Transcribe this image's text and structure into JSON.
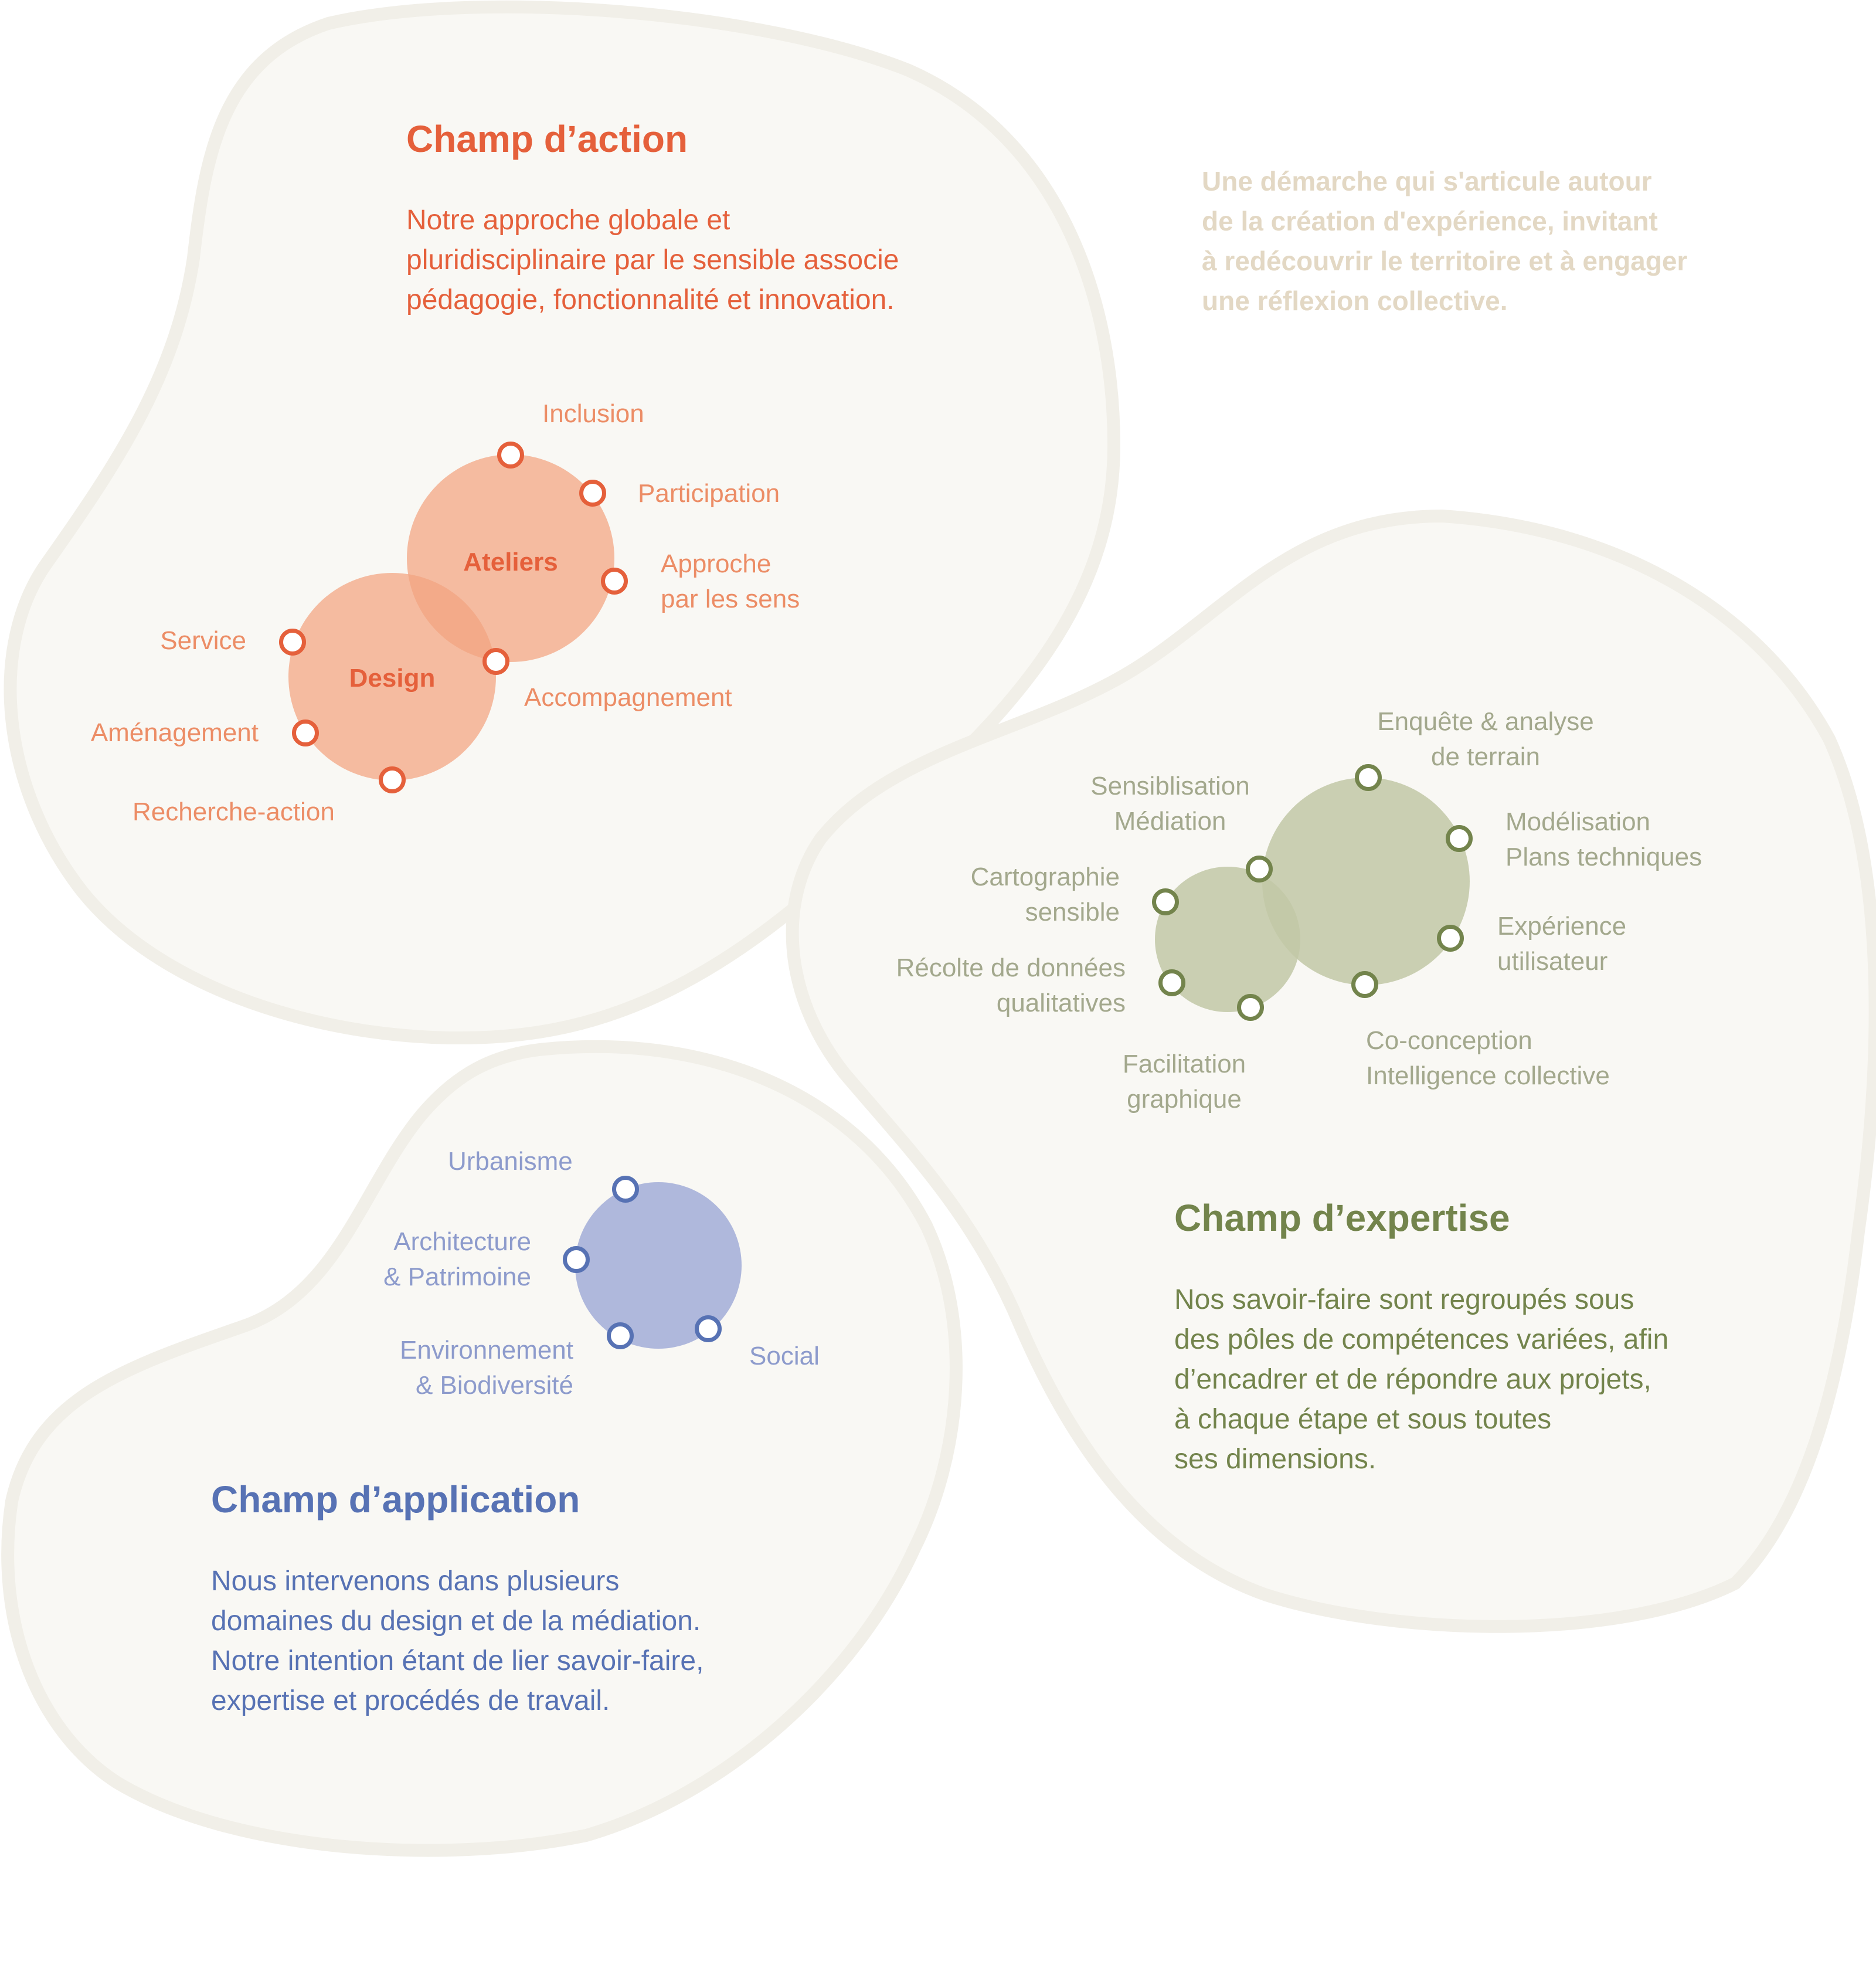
{
  "colors": {
    "blob_fill": "#f9f8f4",
    "blob_edge": "#f1efe8",
    "action_accent": "#e5603b",
    "action_circle": "#f2a47f",
    "expertise_accent": "#73844c",
    "expertise_circle": "#c2c8a6",
    "application_accent": "#5772b4",
    "application_circle": "#a6b0d9",
    "intro_text": "#e3d8c4"
  },
  "intro": "Une démarche qui s'articule autour\nde la création d'expérience, invitant\nà redécouvrir le territoire et à engager\nune réflexion collective.",
  "action": {
    "title": "Champ d’action",
    "text": "Notre approche globale et\npluridisciplinaire par le sensible associe\npédagogie, fonctionnalité et innovation.",
    "circles": [
      "Ateliers",
      "Design"
    ],
    "labels": {
      "inclusion": "Inclusion",
      "participation": "Participation",
      "approche": "Approche\npar les sens",
      "accompagnement": "Accompagnement",
      "service": "Service",
      "amenagement": "Aménagement",
      "recherche": "Recherche-action"
    }
  },
  "expertise": {
    "title": "Champ d’expertise",
    "text": "Nos savoir-faire sont regroupés sous\ndes pôles de compétences variées, afin\nd’encadrer et de répondre aux projets,\nà chaque étape et sous toutes\nses dimensions.",
    "labels": {
      "enquete": "Enquête & analyse\nde terrain",
      "sensibilisation": "Sensiblisation\nMédiation",
      "modelisation": "Modélisation\nPlans techniques",
      "cartographie": "Cartographie\nsensible",
      "experience": "Expérience\nutilisateur",
      "recolte": "Récolte de données\nqualitatives",
      "facilitation": "Facilitation\ngraphique",
      "coconception": "Co-conception\nIntelligence collective"
    }
  },
  "application": {
    "title": "Champ d’application",
    "text": "Nous intervenons dans plusieurs\ndomaines du design et de la médiation.\nNotre intention étant de lier savoir-faire,\nexpertise et procédés de travail.",
    "labels": {
      "urbanisme": "Urbanisme",
      "architecture": "Architecture\n& Patrimoine",
      "environnement": "Environnement\n& Biodiversité",
      "social": "Social"
    }
  }
}
